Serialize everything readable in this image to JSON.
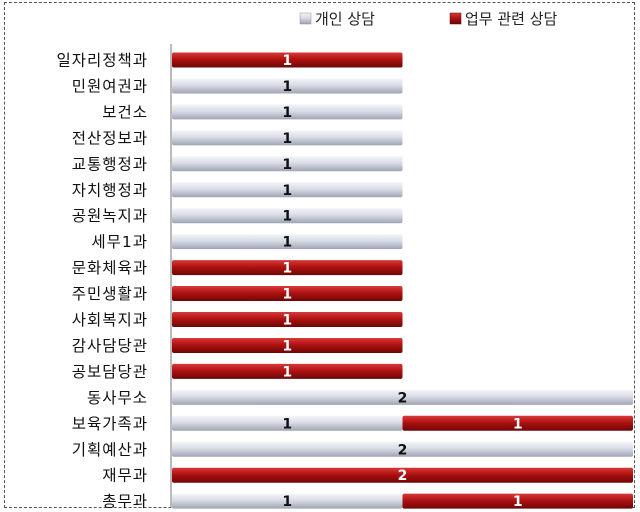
{
  "chart_data": {
    "type": "bar",
    "orientation": "horizontal",
    "stacked": true,
    "title": "",
    "xlabel": "",
    "ylabel": "",
    "xlim": [
      0,
      2
    ],
    "grid": false,
    "legend_position": "top-right",
    "categories": [
      "일자리정책과",
      "민원여권과",
      "보건소",
      "전산정보과",
      "교통행정과",
      "자치행정과",
      "공원녹지과",
      "세무1과",
      "문화체육과",
      "주민생활과",
      "사회복지과",
      "감사담당관",
      "공보담당관",
      "동사무소",
      "보육가족과",
      "기획예산과",
      "재무과",
      "총무과"
    ],
    "series": [
      {
        "name": "개인 상담",
        "color": "#c8ccd8",
        "values": [
          0,
          1,
          1,
          1,
          1,
          1,
          1,
          1,
          0,
          0,
          0,
          0,
          0,
          2,
          1,
          2,
          0,
          1
        ]
      },
      {
        "name": "업무 관련 상담",
        "color": "#a80f0f",
        "values": [
          1,
          0,
          0,
          0,
          0,
          0,
          0,
          0,
          1,
          1,
          1,
          1,
          1,
          0,
          1,
          0,
          2,
          1
        ]
      }
    ]
  }
}
